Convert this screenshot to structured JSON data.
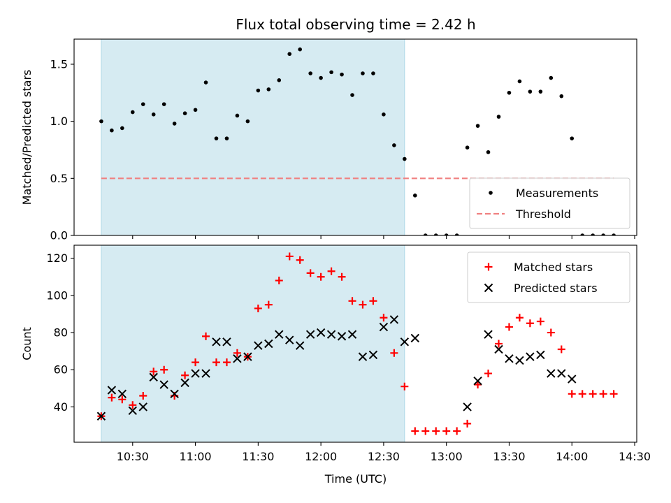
{
  "chart_data": {
    "type": "scatter",
    "title": "Flux total observing time = 2.42 h",
    "xlabel": "Time (UTC)",
    "x_tick_labels": [
      "10:30",
      "11:00",
      "11:30",
      "12:00",
      "12:30",
      "13:00",
      "13:30",
      "14:00",
      "14:30"
    ],
    "x_tick_values": [
      "10:30",
      "11:00",
      "11:30",
      "12:00",
      "12:30",
      "13:00",
      "13:30",
      "14:00",
      "14:30"
    ],
    "xlim": [
      "10:02",
      "14:31"
    ],
    "shaded_span": {
      "start": "10:15",
      "end": "12:40",
      "color": "#add8e6"
    },
    "x": [
      "10:15",
      "10:20",
      "10:25",
      "10:30",
      "10:35",
      "10:40",
      "10:45",
      "10:50",
      "10:55",
      "11:00",
      "11:05",
      "11:10",
      "11:15",
      "11:20",
      "11:25",
      "11:30",
      "11:35",
      "11:40",
      "11:45",
      "11:50",
      "11:55",
      "12:00",
      "12:05",
      "12:10",
      "12:15",
      "12:20",
      "12:25",
      "12:30",
      "12:35",
      "12:40",
      "12:45",
      "12:50",
      "12:55",
      "13:00",
      "13:05",
      "13:10",
      "13:15",
      "13:20",
      "13:25",
      "13:30",
      "13:35",
      "13:40",
      "13:45",
      "13:50",
      "13:55",
      "14:00",
      "14:05",
      "14:10",
      "14:15",
      "14:20"
    ],
    "panels": [
      {
        "ylabel": "Matched/Predicted stars",
        "ylim": [
          0,
          1.72
        ],
        "y_tick_values": [
          0.0,
          0.5,
          1.0,
          1.5
        ],
        "y_tick_labels": [
          "0.0",
          "0.5",
          "1.0",
          "1.5"
        ],
        "legend_position": "lower-right",
        "series": [
          {
            "name": "Measurements",
            "marker": "dot",
            "color": "#000000",
            "values": [
              1.0,
              0.92,
              0.94,
              1.08,
              1.15,
              1.06,
              1.15,
              0.98,
              1.07,
              1.1,
              1.34,
              0.85,
              0.85,
              1.05,
              1.0,
              1.27,
              1.28,
              1.36,
              1.59,
              1.63,
              1.42,
              1.38,
              1.43,
              1.41,
              1.23,
              1.42,
              1.42,
              1.06,
              0.79,
              0.67,
              0.35,
              0,
              0,
              0,
              0,
              0.77,
              0.96,
              0.73,
              1.04,
              1.25,
              1.35,
              1.26,
              1.26,
              1.38,
              1.22,
              0.85,
              0,
              0,
              0,
              0
            ]
          }
        ],
        "threshold": {
          "name": "Threshold",
          "value": 0.5,
          "start": "10:15",
          "end": "14:20",
          "color": "#f08080"
        }
      },
      {
        "ylabel": "Count",
        "ylim": [
          21,
          127
        ],
        "y_tick_values": [
          40,
          60,
          80,
          100,
          120
        ],
        "y_tick_labels": [
          "40",
          "60",
          "80",
          "100",
          "120"
        ],
        "legend_position": "upper-right",
        "series": [
          {
            "name": "Matched stars",
            "marker": "plus",
            "color": "#ff0000",
            "values": [
              35,
              45,
              44,
              41,
              46,
              59,
              60,
              46,
              57,
              64,
              78,
              64,
              64,
              69,
              67,
              93,
              95,
              108,
              121,
              119,
              112,
              110,
              113,
              110,
              97,
              95,
              97,
              88,
              69,
              51,
              27,
              27,
              27,
              27,
              27,
              31,
              52,
              58,
              74,
              83,
              88,
              85,
              86,
              80,
              71,
              47,
              47,
              47,
              47,
              47
            ]
          },
          {
            "name": "Predicted stars",
            "marker": "x",
            "color": "#000000",
            "values": [
              35,
              49,
              47,
              38,
              40,
              56,
              52,
              47,
              53,
              58,
              58,
              75,
              75,
              66,
              67,
              73,
              74,
              79,
              76,
              73,
              79,
              80,
              79,
              78,
              79,
              67,
              68,
              83,
              87,
              75,
              77,
              null,
              null,
              null,
              null,
              40,
              54,
              79,
              71,
              66,
              65,
              67,
              68,
              58,
              58,
              55,
              null,
              null,
              null,
              null
            ]
          }
        ]
      }
    ]
  }
}
